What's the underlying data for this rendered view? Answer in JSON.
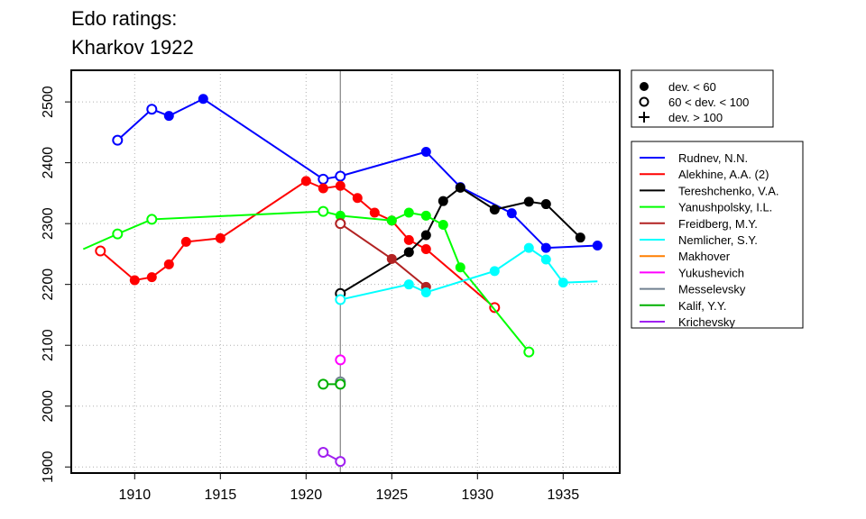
{
  "title_line1": "Edo ratings:",
  "title_line2": "Kharkov 1922",
  "symbol_legend": [
    {
      "label": "dev. < 60",
      "marker": "filled"
    },
    {
      "label": "60 < dev. < 100",
      "marker": "open"
    },
    {
      "label": "dev. > 100",
      "marker": "plus"
    }
  ],
  "chart_data": {
    "type": "line",
    "title": "Edo ratings: Kharkov 1922",
    "xlabel": "",
    "ylabel": "",
    "xlim": [
      1906.3,
      1938.3
    ],
    "ylim": [
      1890,
      2552
    ],
    "xticks": [
      1910,
      1915,
      1920,
      1925,
      1930,
      1935
    ],
    "yticks": [
      1900,
      2000,
      2100,
      2200,
      2300,
      2400,
      2500
    ],
    "grid": true,
    "reference_line_x": 1922,
    "legend_placement": "right",
    "series": [
      {
        "name": "Rudnev, N.N.",
        "color": "#0000ff",
        "points": [
          [
            1909,
            2437,
            "o"
          ],
          [
            1911,
            2488,
            "o"
          ],
          [
            1912,
            2477,
            "f"
          ],
          [
            1914,
            2505,
            "f"
          ],
          [
            1921,
            2373,
            "o"
          ],
          [
            1922,
            2378,
            "o"
          ],
          [
            1927,
            2418,
            "f"
          ],
          [
            1929,
            2360,
            "f"
          ],
          [
            1932,
            2317,
            "f"
          ],
          [
            1934,
            2260,
            "f"
          ],
          [
            1937,
            2264,
            "f"
          ]
        ]
      },
      {
        "name": "Alekhine, A.A. (2)",
        "color": "#ff0000",
        "points": [
          [
            1908,
            2255,
            "o"
          ],
          [
            1910,
            2207,
            "f"
          ],
          [
            1911,
            2212,
            "f"
          ],
          [
            1912,
            2233,
            "f"
          ],
          [
            1913,
            2270,
            "f"
          ],
          [
            1915,
            2276,
            "f"
          ],
          [
            1920,
            2370,
            "f"
          ],
          [
            1921,
            2358,
            "f"
          ],
          [
            1922,
            2362,
            "f"
          ],
          [
            1923,
            2342,
            "f"
          ],
          [
            1924,
            2318,
            "f"
          ],
          [
            1925,
            2305,
            "f"
          ],
          [
            1926,
            2273,
            "f"
          ],
          [
            1927,
            2258,
            "f"
          ],
          [
            1931,
            2162,
            "o"
          ]
        ]
      },
      {
        "name": "Tereshchenko, V.A.",
        "color": "#000000",
        "points": [
          [
            1922,
            2185,
            "o"
          ],
          [
            1926,
            2253,
            "f"
          ],
          [
            1927,
            2281,
            "f"
          ],
          [
            1928,
            2337,
            "f"
          ],
          [
            1929,
            2359,
            "f"
          ],
          [
            1931,
            2323,
            "f"
          ],
          [
            1933,
            2336,
            "f"
          ],
          [
            1934,
            2332,
            "f"
          ],
          [
            1936,
            2277,
            "f"
          ]
        ]
      },
      {
        "name": "Yanushpolsky, I.L.",
        "color": "#00ff00",
        "lead_in": [
          1907,
          2258
        ],
        "points": [
          [
            1909,
            2283,
            "o"
          ],
          [
            1911,
            2307,
            "o"
          ],
          [
            1921,
            2320,
            "o"
          ],
          [
            1922,
            2313,
            "f"
          ],
          [
            1925,
            2305,
            "f"
          ],
          [
            1926,
            2318,
            "f"
          ],
          [
            1927,
            2313,
            "f"
          ],
          [
            1928,
            2298,
            "f"
          ],
          [
            1929,
            2228,
            "f"
          ],
          [
            1933,
            2089,
            "o"
          ]
        ]
      },
      {
        "name": "Freidberg, M.Y.",
        "color": "#b22222",
        "points": [
          [
            1922,
            2300,
            "o"
          ],
          [
            1925,
            2242,
            "f"
          ],
          [
            1927,
            2196,
            "f"
          ]
        ]
      },
      {
        "name": "Nemlicher, S.Y.",
        "color": "#00ffff",
        "points": [
          [
            1922,
            2175,
            "o"
          ],
          [
            1926,
            2200,
            "f"
          ],
          [
            1927,
            2187,
            "f"
          ],
          [
            1931,
            2222,
            "f"
          ],
          [
            1933,
            2260,
            "f"
          ],
          [
            1934,
            2241,
            "f"
          ],
          [
            1935,
            2203,
            "f"
          ]
        ],
        "lead_out": [
          1937,
          2205
        ]
      },
      {
        "name": "Makhover",
        "color": "#ff7f00",
        "points": []
      },
      {
        "name": "Yukushevich",
        "color": "#ff00ff",
        "points": [
          [
            1922,
            2076,
            "o"
          ]
        ]
      },
      {
        "name": "Messelevsky",
        "color": "#708090",
        "points": [
          [
            1922,
            2040,
            "o"
          ]
        ]
      },
      {
        "name": "Kalif, Y.Y.",
        "color": "#00b000",
        "points": [
          [
            1921,
            2036,
            "o"
          ],
          [
            1922,
            2036,
            "o"
          ]
        ]
      },
      {
        "name": "Krichevsky",
        "color": "#a020f0",
        "points": [
          [
            1921,
            1924,
            "o"
          ],
          [
            1922,
            1909,
            "o"
          ]
        ]
      }
    ]
  }
}
